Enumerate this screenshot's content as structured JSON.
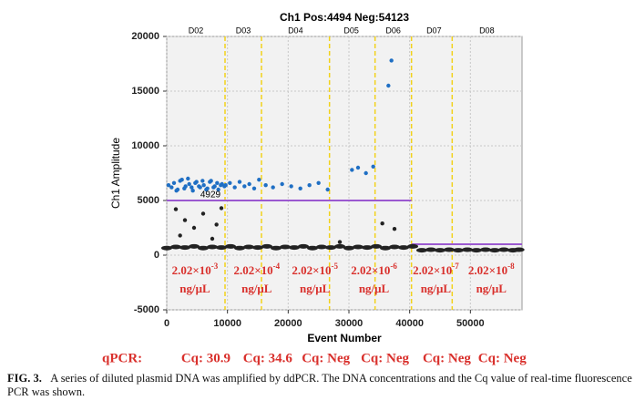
{
  "chart_data": {
    "type": "scatter",
    "title": "Ch1 Pos:4494 Neg:54123",
    "x_label": "Event Number",
    "y_label": "Ch1 Amplitude",
    "xlim": [
      0,
      58500
    ],
    "ylim": [
      -5000,
      20000
    ],
    "xticks": [
      0,
      10000,
      20000,
      30000,
      40000,
      50000
    ],
    "yticks": [
      -5000,
      0,
      5000,
      10000,
      15000,
      20000
    ],
    "grid": true,
    "well_boundaries": [
      9600,
      15600,
      26800,
      34300,
      40300,
      47000
    ],
    "wells": [
      {
        "label": "D02",
        "x": 4800
      },
      {
        "label": "D03",
        "x": 12600
      },
      {
        "label": "D04",
        "x": 21200
      },
      {
        "label": "D05",
        "x": 30400
      },
      {
        "label": "D06",
        "x": 37300
      },
      {
        "label": "D07",
        "x": 44000
      },
      {
        "label": "D08",
        "x": 52700
      }
    ],
    "thresholds": [
      {
        "x": [
          0,
          40300
        ],
        "y": 5000,
        "color": "#9b59d0"
      },
      {
        "x": [
          40300,
          58500
        ],
        "y": 1000,
        "color": "#9b59d0"
      }
    ],
    "threshold_label": {
      "text": "4929",
      "x": 7200,
      "y": 5500
    },
    "series": [
      {
        "name": "Positive",
        "color": "#1f6fc4",
        "x": [
          300,
          800,
          1200,
          1600,
          1800,
          2200,
          2500,
          2900,
          3100,
          3500,
          3700,
          4100,
          4300,
          4700,
          4900,
          5300,
          5500,
          5900,
          6100,
          6500,
          6700,
          7100,
          7300,
          7700,
          7900,
          8300,
          8500,
          8900,
          9100,
          9500,
          9700,
          10400,
          11200,
          12000,
          12800,
          13600,
          14400,
          15200,
          16300,
          17500,
          19000,
          20500,
          22000,
          23500,
          25000,
          26500,
          30500,
          31500,
          32800,
          34000,
          37000,
          36500
        ],
        "values": [
          6400,
          6200,
          6600,
          5900,
          6000,
          6800,
          6900,
          6100,
          6300,
          7000,
          6500,
          6200,
          5900,
          6600,
          6700,
          6300,
          6200,
          6800,
          6400,
          6000,
          6100,
          6700,
          6800,
          6200,
          6300,
          6600,
          6000,
          6400,
          6500,
          6300,
          6400,
          6600,
          6200,
          6700,
          6300,
          6500,
          6100,
          6900,
          6400,
          6200,
          6500,
          6300,
          6100,
          6400,
          6600,
          6000,
          7800,
          8000,
          7500,
          8100,
          17800,
          15500
        ]
      },
      {
        "name": "Negative",
        "color": "#222222",
        "x": [
          0,
          1500,
          3000,
          4500,
          6000,
          7500,
          9000,
          10500,
          12000,
          13500,
          15000,
          16500,
          18000,
          19500,
          21000,
          22500,
          24000,
          25500,
          27000,
          28500,
          30000,
          31500,
          33000,
          34500,
          36000,
          37500,
          39000,
          40500,
          42000,
          43500,
          45000,
          46500,
          48000,
          49500,
          51000,
          52500,
          54000,
          55500,
          57000,
          58000,
          1500,
          3000,
          4500,
          6000,
          7500,
          9000,
          2200,
          8200,
          35500,
          37500,
          28500
        ],
        "values": [
          650,
          750,
          700,
          800,
          650,
          750,
          700,
          800,
          650,
          750,
          700,
          800,
          650,
          750,
          700,
          800,
          650,
          750,
          700,
          800,
          650,
          750,
          700,
          800,
          650,
          750,
          700,
          800,
          450,
          500,
          450,
          500,
          450,
          500,
          450,
          500,
          450,
          500,
          450,
          500,
          4200,
          3200,
          2500,
          3800,
          1500,
          4300,
          1800,
          2800,
          2900,
          2400,
          1200
        ]
      }
    ],
    "annotations": [
      {
        "base": "2.02×10",
        "exp": "-3",
        "unit": "ng/μL",
        "x": 4640
      },
      {
        "base": "2.02×10",
        "exp": "-4",
        "unit": "ng/μL",
        "x": 14820
      },
      {
        "base": "2.02×10",
        "exp": "-5",
        "unit": "ng/μL",
        "x": 24400
      },
      {
        "base": "2.02×10",
        "exp": "-6",
        "unit": "ng/μL",
        "x": 34130
      },
      {
        "base": "2.02×10",
        "exp": "-7",
        "unit": "ng/μL",
        "x": 44310
      },
      {
        "base": "2.02×10",
        "exp": "-8",
        "unit": "ng/μL",
        "x": 53440
      }
    ]
  },
  "qpcr": {
    "label": "qPCR:",
    "values": [
      "Cq: 30.9",
      "Cq: 34.6",
      "Cq: Neg",
      "Cq: Neg",
      "Cq: Neg",
      "Cq: Neg"
    ]
  },
  "caption": {
    "label": "FIG. 3.",
    "text": "A series of diluted plasmid DNA was amplified by ddPCR. The DNA concentrations and the Cq value of real-time fluorescence PCR was shown."
  }
}
